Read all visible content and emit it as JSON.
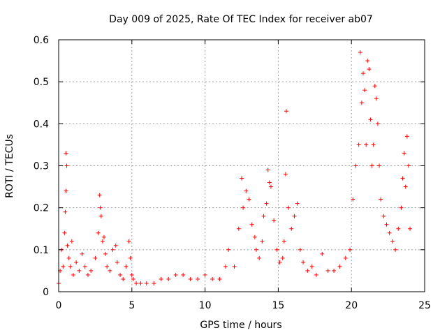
{
  "chart_data": {
    "type": "scatter",
    "title": "Day 009 of 2025, Rate Of TEC Index for receiver ab07",
    "xlabel": "GPS time / hours",
    "ylabel": "ROTI / TECUs",
    "xlim": [
      0,
      25
    ],
    "ylim": [
      0,
      0.6
    ],
    "xticks": [
      "0",
      "5",
      "10",
      "15",
      "20",
      "25"
    ],
    "yticks": [
      "0",
      "0.1",
      "0.2",
      "0.3",
      "0.4",
      "0.5",
      "0.6"
    ],
    "grid": true,
    "marker": "+",
    "color": "#ff0000",
    "series": [
      {
        "x": [
          0.0,
          0.1,
          0.2,
          0.3,
          0.4,
          0.45,
          0.5,
          0.5,
          0.55,
          0.6,
          0.7,
          0.8,
          0.9,
          1.0,
          1.2,
          1.4,
          1.6,
          1.8,
          2.0,
          2.2,
          2.5,
          2.7,
          2.8,
          2.85,
          2.9,
          3.0,
          3.1,
          3.2,
          3.3,
          3.5,
          3.7,
          3.9,
          4.0,
          4.2,
          4.4,
          4.6,
          4.8,
          4.9,
          5.0,
          5.1,
          5.3,
          5.6,
          6.0,
          6.5,
          7.0,
          7.5,
          8.0,
          8.5,
          9.0,
          9.5,
          10.0,
          10.5,
          11.0,
          11.4,
          11.6,
          12.0,
          12.3,
          12.5,
          12.6,
          12.8,
          13.0,
          13.2,
          13.4,
          13.5,
          13.7,
          13.9,
          14.0,
          14.2,
          14.3,
          14.4,
          14.5,
          14.7,
          14.9,
          15.1,
          15.3,
          15.4,
          15.5,
          15.55,
          15.7,
          15.9,
          16.1,
          16.3,
          16.5,
          16.7,
          17.0,
          17.3,
          17.6,
          18.0,
          18.4,
          18.8,
          19.2,
          19.6,
          19.9,
          20.1,
          20.3,
          20.5,
          20.6,
          20.7,
          20.8,
          20.9,
          21.0,
          21.1,
          21.2,
          21.3,
          21.4,
          21.5,
          21.6,
          21.7,
          21.8,
          21.9,
          22.0,
          22.2,
          22.4,
          22.6,
          22.8,
          23.0,
          23.2,
          23.4,
          23.5,
          23.6,
          23.7,
          23.8,
          23.9,
          24.0
        ],
        "y": [
          0.02,
          0.05,
          0.1,
          0.06,
          0.14,
          0.19,
          0.24,
          0.33,
          0.3,
          0.11,
          0.08,
          0.06,
          0.12,
          0.04,
          0.07,
          0.05,
          0.09,
          0.06,
          0.04,
          0.05,
          0.08,
          0.14,
          0.23,
          0.2,
          0.18,
          0.12,
          0.13,
          0.09,
          0.06,
          0.05,
          0.1,
          0.11,
          0.07,
          0.04,
          0.03,
          0.06,
          0.12,
          0.08,
          0.04,
          0.03,
          0.02,
          0.02,
          0.02,
          0.02,
          0.03,
          0.03,
          0.04,
          0.04,
          0.03,
          0.03,
          0.04,
          0.03,
          0.03,
          0.06,
          0.1,
          0.06,
          0.15,
          0.27,
          0.2,
          0.24,
          0.22,
          0.16,
          0.13,
          0.1,
          0.08,
          0.12,
          0.18,
          0.21,
          0.29,
          0.26,
          0.25,
          0.17,
          0.1,
          0.07,
          0.08,
          0.12,
          0.28,
          0.43,
          0.2,
          0.15,
          0.18,
          0.21,
          0.1,
          0.07,
          0.05,
          0.06,
          0.04,
          0.09,
          0.05,
          0.05,
          0.06,
          0.08,
          0.1,
          0.22,
          0.3,
          0.35,
          0.57,
          0.45,
          0.52,
          0.48,
          0.35,
          0.55,
          0.53,
          0.41,
          0.3,
          0.35,
          0.49,
          0.46,
          0.4,
          0.3,
          0.22,
          0.18,
          0.16,
          0.14,
          0.12,
          0.1,
          0.15,
          0.2,
          0.27,
          0.33,
          0.25,
          0.37,
          0.3,
          0.15
        ]
      }
    ]
  }
}
